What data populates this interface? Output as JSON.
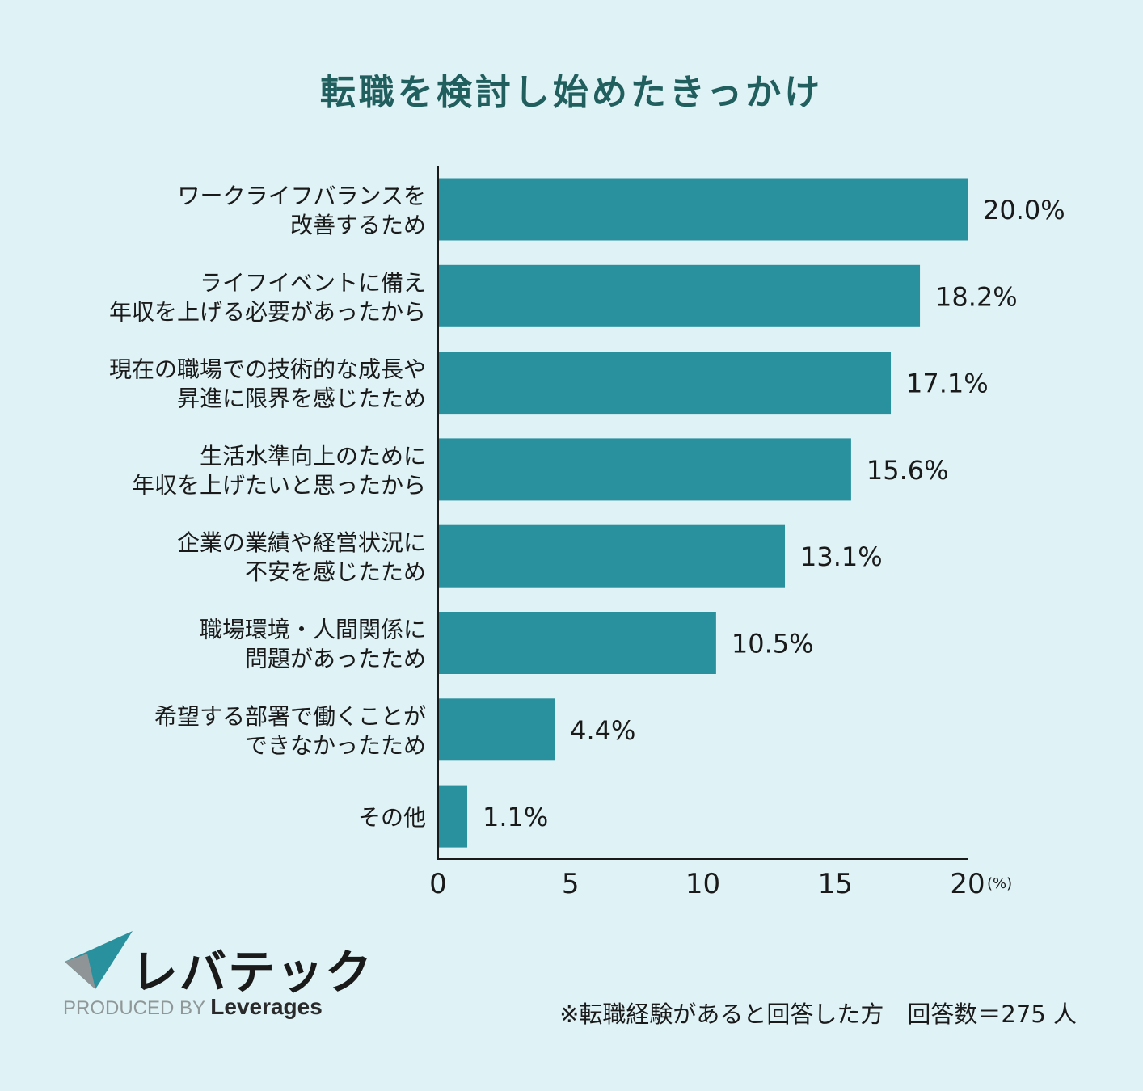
{
  "chart_data": {
    "type": "bar",
    "orientation": "horizontal",
    "title": "転職を検討し始めたきっかけ",
    "categories": [
      [
        "ワークライフバランスを",
        "改善するため"
      ],
      [
        "ライフイベントに備え",
        "年収を上げる必要があったから"
      ],
      [
        "現在の職場での技術的な成長や",
        "昇進に限界を感じたため"
      ],
      [
        "生活水準向上のために",
        "年収を上げたいと思ったから"
      ],
      [
        "企業の業績や経営状況に",
        "不安を感じたため"
      ],
      [
        "職場環境・人間関係に",
        "問題があったため"
      ],
      [
        "希望する部署で働くことが",
        "できなかったため"
      ],
      [
        "その他"
      ]
    ],
    "values": [
      20.0,
      18.2,
      17.1,
      15.6,
      13.1,
      10.5,
      4.4,
      1.1
    ],
    "value_labels": [
      "20.0%",
      "18.2%",
      "17.1%",
      "15.6%",
      "13.1%",
      "10.5%",
      "4.4%",
      "1.1%"
    ],
    "xlim": [
      0,
      20
    ],
    "xticks": [
      "0",
      "5",
      "10",
      "15",
      "20"
    ],
    "xunit": "(%)",
    "bar_color": "#29909e",
    "grid": false
  },
  "branding": {
    "logo_text": "レバテック",
    "produced_by": "PRODUCED BY",
    "brand_name": "Leverages"
  },
  "footnote": "※転職経験があると回答した方　回答数＝275 人"
}
